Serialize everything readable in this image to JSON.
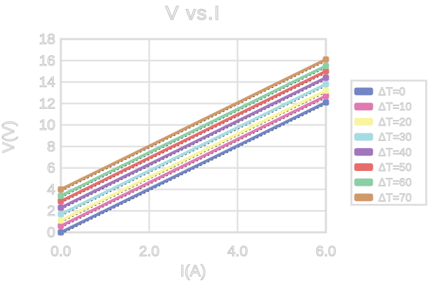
{
  "chart_data": {
    "type": "line",
    "title": "V vs.I",
    "xlabel": "I(A)",
    "ylabel": "V(V)",
    "xlim": [
      0,
      6
    ],
    "ylim": [
      0,
      18
    ],
    "grid": true,
    "legend_position": "right",
    "x": [
      0,
      6
    ],
    "x_ticks": [
      {
        "value": 0,
        "label": "0.0"
      },
      {
        "value": 2,
        "label": "2.0"
      },
      {
        "value": 4,
        "label": "4.0"
      },
      {
        "value": 6,
        "label": "6.0"
      }
    ],
    "y_ticks": [
      {
        "value": 0,
        "label": "0"
      },
      {
        "value": 2,
        "label": "2"
      },
      {
        "value": 4,
        "label": "4"
      },
      {
        "value": 6,
        "label": "6"
      },
      {
        "value": 8,
        "label": "8"
      },
      {
        "value": 10,
        "label": "10"
      },
      {
        "value": 12,
        "label": "12"
      },
      {
        "value": 14,
        "label": "14"
      },
      {
        "value": 16,
        "label": "16"
      },
      {
        "value": 18,
        "label": "18"
      }
    ],
    "series": [
      {
        "name": "ΔT=0",
        "color": "#7285c4",
        "values": [
          0.0,
          12.1
        ]
      },
      {
        "name": "ΔT=10",
        "color": "#e07ab2",
        "values": [
          0.6,
          12.7
        ]
      },
      {
        "name": "ΔT=20",
        "color": "#f8f4a0",
        "values": [
          1.1,
          13.2
        ]
      },
      {
        "name": "ΔT=30",
        "color": "#a6dbe2",
        "values": [
          1.7,
          13.8
        ]
      },
      {
        "name": "ΔT=40",
        "color": "#a276bd",
        "values": [
          2.3,
          14.4
        ]
      },
      {
        "name": "ΔT=50",
        "color": "#e76d6d",
        "values": [
          2.9,
          15.0
        ]
      },
      {
        "name": "ΔT=60",
        "color": "#8ccfa6",
        "values": [
          3.4,
          15.5
        ]
      },
      {
        "name": "ΔT=70",
        "color": "#d0996a",
        "values": [
          4.0,
          16.1
        ]
      }
    ],
    "colors": {
      "background": "#ffffff",
      "grid": "#e1e1e1",
      "border": "#dcdcdc",
      "text_fill": "#ffffff",
      "text_outline": "#c6c6c6",
      "trendline": "#2b2b2b"
    }
  }
}
